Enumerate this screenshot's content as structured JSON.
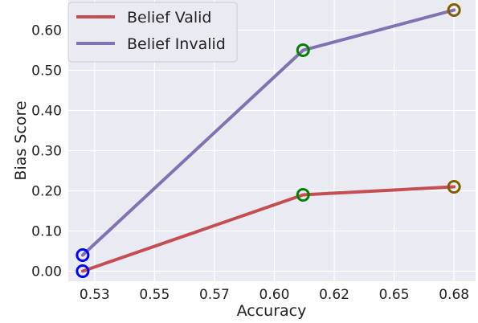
{
  "chart_data": {
    "type": "line",
    "xlabel": "Accuracy",
    "ylabel": "Bias Score",
    "xlim": [
      0.514,
      0.684
    ],
    "ylim": [
      -0.025,
      0.675
    ],
    "xticks": [
      0.525,
      0.55,
      0.575,
      0.6,
      0.625,
      0.65,
      0.675
    ],
    "xtick_labels": [
      "0.53",
      "0.55",
      "0.57",
      "0.60",
      "0.62",
      "0.65",
      "0.68"
    ],
    "yticks": [
      0.0,
      0.1,
      0.2,
      0.3,
      0.4,
      0.5,
      0.6
    ],
    "ytick_labels": [
      "0.00",
      "0.10",
      "0.20",
      "0.30",
      "0.40",
      "0.50",
      "0.60"
    ],
    "grid": true,
    "background": "#eaeaf2",
    "legend_position": "top-left",
    "series": [
      {
        "name": "Belief Valid",
        "color": "#c44e52",
        "x": [
          0.52,
          0.612,
          0.675
        ],
        "y": [
          0.0,
          0.19,
          0.21
        ]
      },
      {
        "name": "Belief Invalid",
        "color": "#8172b2",
        "x": [
          0.52,
          0.612,
          0.675
        ],
        "y": [
          0.04,
          0.55,
          0.65
        ]
      }
    ],
    "point_marker_colors": [
      "#0000ff",
      "#008000",
      "#7f6000"
    ]
  }
}
